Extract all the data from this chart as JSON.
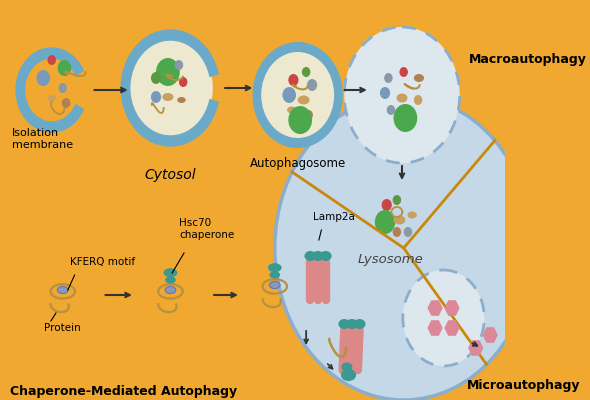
{
  "bg_color": "#F0A830",
  "lysosome_color": "#C5D8E8",
  "lysosome_edge": "#8AAECC",
  "membrane_color": "#6AAAC8",
  "membrane_fill": "#EDE8D0",
  "text_color": "#000000",
  "labels": {
    "isolation_membrane": "Isolation\nmembrane",
    "autophagosome": "Autophagosome",
    "cytosol": "Cytosol",
    "lysosome": "Lysosome",
    "macroautophagy": "Macroautophagy",
    "microautophagy": "Microautophagy",
    "cma": "Chaperone-Mediated Autophagy",
    "kferq": "KFERQ motif",
    "protein": "Protein",
    "hsc70": "Hsc70\nchaperone",
    "lamp2a": "Lamp2a"
  },
  "organelle_colors": {
    "green_large": "#4CA84C",
    "green_small": "#5A9A40",
    "red": "#CC4444",
    "blue_gray": "#8899AA",
    "blue_light": "#7799BB",
    "tan": "#C8A060",
    "brown": "#B08050",
    "teal": "#3A9990",
    "pink": "#DD8888",
    "squiggle": "#B89040"
  },
  "arrow_color": "#333333",
  "divider_color": "#C8880A",
  "dashed_circle_edge": "#8AAECC"
}
